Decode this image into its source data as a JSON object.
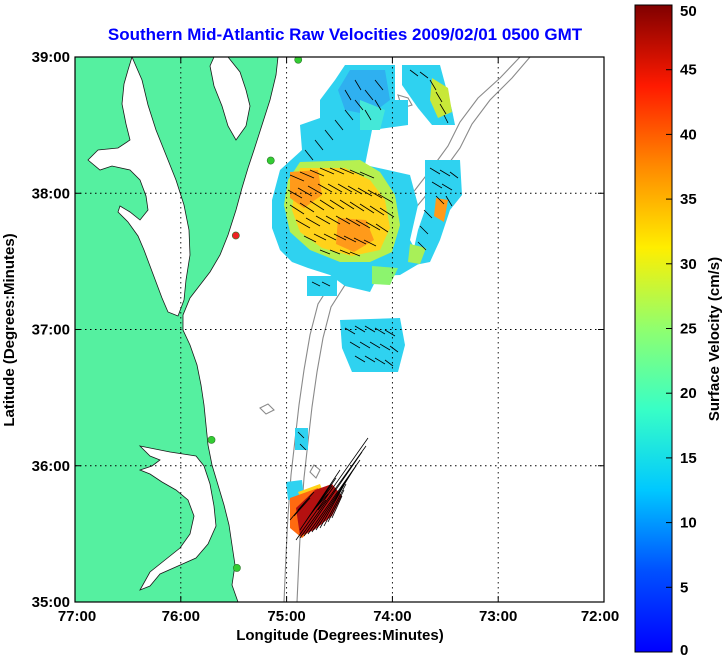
{
  "title": "Southern Mid-Atlantic Raw Velocities 2009/02/01 0500 GMT",
  "map": {
    "xlabel": "Longitude (Degrees:Minutes)",
    "ylabel": "Latitude (Degrees:Minutes)",
    "x_ticks": [
      "77:00",
      "76:00",
      "75:00",
      "74:00",
      "73:00",
      "72:00"
    ],
    "x_tick_values": [
      -77,
      -76,
      -75,
      -74,
      -73,
      -72
    ],
    "y_ticks": [
      "35:00",
      "36:00",
      "37:00",
      "38:00",
      "39:00"
    ],
    "y_tick_values": [
      35,
      36,
      37,
      38,
      39
    ],
    "lon_range": [
      -77,
      -72
    ],
    "lat_range": [
      35,
      39
    ],
    "land_color": "#55f0a0",
    "water_color": "#ffffff",
    "grid": "dotted"
  },
  "colorbar": {
    "label": "Surface Velocity (cm/s)",
    "ticks": [
      "0",
      "5",
      "10",
      "15",
      "20",
      "25",
      "30",
      "35",
      "40",
      "45",
      "50"
    ],
    "range": [
      0,
      50
    ],
    "colormap": "jet"
  },
  "stations": [
    {
      "lon": -74.89,
      "lat": 38.98,
      "color": "#33cc33"
    },
    {
      "lon": -75.15,
      "lat": 38.24,
      "color": "#33cc33"
    },
    {
      "lon": -75.48,
      "lat": 37.69,
      "color": "#ee2222"
    },
    {
      "lon": -75.71,
      "lat": 36.19,
      "color": "#33cc33"
    },
    {
      "lon": -75.47,
      "lat": 35.25,
      "color": "#33cc33"
    }
  ]
}
